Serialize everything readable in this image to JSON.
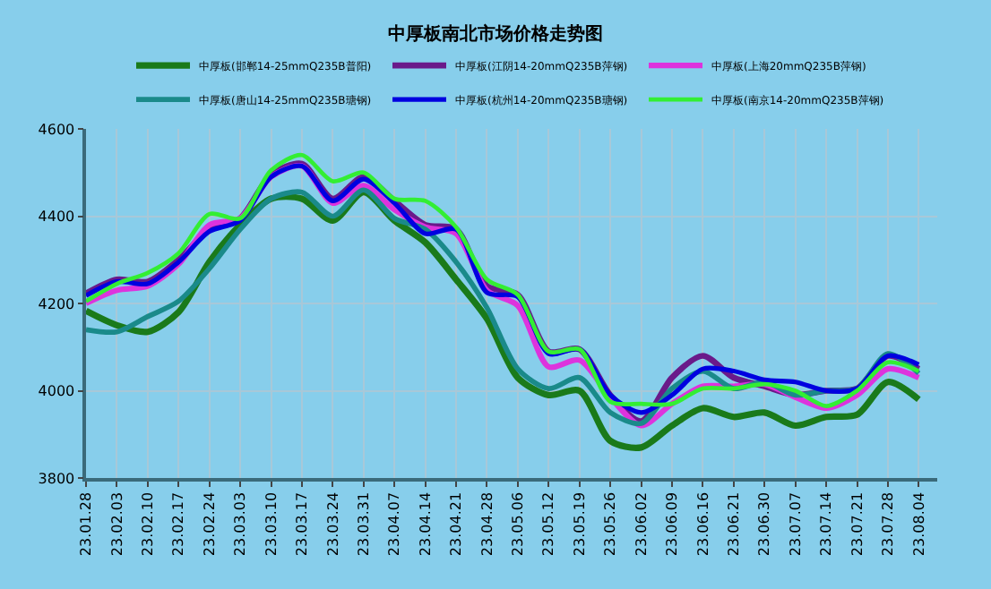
{
  "chart_data": {
    "type": "line",
    "title": "中厚板南北市场价格走势图",
    "categories": [
      "23.01.28",
      "23.02.03",
      "23.02.10",
      "23.02.17",
      "23.02.24",
      "23.03.03",
      "23.03.10",
      "23.03.17",
      "23.03.24",
      "23.03.31",
      "23.04.07",
      "23.04.14",
      "23.04.21",
      "23.04.28",
      "23.05.06",
      "23.05.12",
      "23.05.19",
      "23.05.26",
      "23.06.02",
      "23.06.09",
      "23.06.16",
      "23.06.21",
      "23.06.30",
      "23.07.07",
      "23.07.14",
      "23.07.21",
      "23.07.28",
      "23.08.04"
    ],
    "series": [
      {
        "name": "中厚板(邯郸14-25mmQ235B普阳)",
        "color": "#1a7a1a",
        "values": [
          4183,
          4150,
          4135,
          4180,
          4295,
          4380,
          4440,
          4440,
          4390,
          4455,
          4390,
          4340,
          4255,
          4165,
          4030,
          3990,
          4000,
          3885,
          3870,
          3920,
          3960,
          3940,
          3950,
          3920,
          3940,
          3945,
          4020,
          3980
        ]
      },
      {
        "name": "中厚板(江阴14-20mmQ235B萍钢)",
        "color": "#6a1a8a",
        "values": [
          4223,
          4255,
          4250,
          4300,
          4370,
          4395,
          4495,
          4520,
          4440,
          4490,
          4435,
          4380,
          4370,
          4240,
          4220,
          4090,
          4095,
          3990,
          3930,
          4030,
          4080,
          4030,
          4010,
          3990,
          4000,
          4005,
          4080,
          4050
        ]
      },
      {
        "name": "中厚板(上海20mmQ235B萍钢)",
        "color": "#dd33dd",
        "values": [
          4200,
          4230,
          4240,
          4290,
          4380,
          4395,
          4490,
          4515,
          4430,
          4470,
          4415,
          4375,
          4360,
          4230,
          4195,
          4055,
          4070,
          3985,
          3920,
          3970,
          4010,
          4010,
          4015,
          3985,
          3960,
          3990,
          4050,
          4030
        ]
      },
      {
        "name": "中厚板(唐山14-25mmQ235B瑭钢)",
        "color": "#1a8a8a",
        "values": [
          4140,
          4135,
          4170,
          4205,
          4280,
          4370,
          4440,
          4455,
          4400,
          4460,
          4395,
          4370,
          4295,
          4190,
          4050,
          4005,
          4030,
          3950,
          3925,
          4005,
          4045,
          4005,
          4020,
          3990,
          4000,
          4005,
          4085,
          4040
        ]
      },
      {
        "name": "中厚板(杭州14-20mmQ235B瑭钢)",
        "color": "#0000e0",
        "values": [
          4218,
          4250,
          4245,
          4295,
          4365,
          4390,
          4490,
          4515,
          4435,
          4485,
          4430,
          4360,
          4370,
          4225,
          4215,
          4085,
          4095,
          3990,
          3950,
          3990,
          4050,
          4045,
          4025,
          4020,
          4000,
          4005,
          4080,
          4060
        ]
      },
      {
        "name": "中厚板(南京14-20mmQ235B萍钢)",
        "color": "#33ee33",
        "values": [
          4205,
          4245,
          4270,
          4315,
          4405,
          4395,
          4505,
          4540,
          4480,
          4500,
          4440,
          4435,
          4375,
          4255,
          4220,
          4090,
          4095,
          3975,
          3970,
          3970,
          4005,
          4005,
          4015,
          4000,
          3965,
          4000,
          4065,
          4045
        ]
      }
    ],
    "ylim": [
      3800,
      4600
    ],
    "yticks": [
      3800,
      4000,
      4200,
      4400,
      4600
    ],
    "grid": true,
    "legend": "top",
    "marker": "none",
    "line_style": "solid"
  }
}
